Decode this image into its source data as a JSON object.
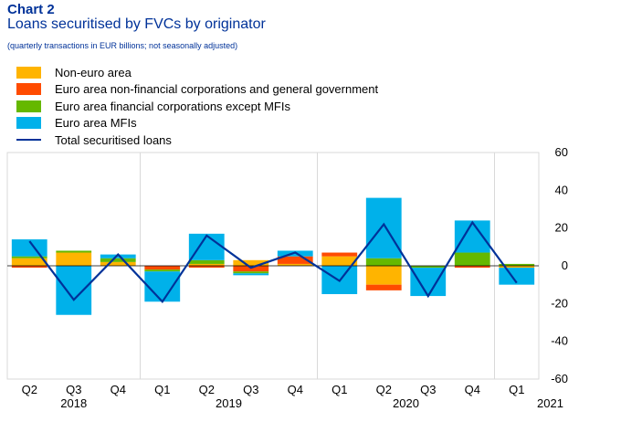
{
  "header": {
    "chart_number": "Chart 2",
    "title": "Loans securitised by FVCs by originator",
    "subtitle": "(quarterly transactions in EUR billions; not seasonally adjusted)"
  },
  "colors": {
    "non_euro": "#FFB400",
    "nfc_gg": "#FF4B00",
    "fc_ex_mfi": "#65B800",
    "mfi": "#00B1EA",
    "total": "#003299",
    "grid": "#d9d9d9"
  },
  "chart_data": {
    "type": "bar",
    "stacked": true,
    "categories": [
      "Q2",
      "Q3",
      "Q4",
      "Q1",
      "Q2",
      "Q3",
      "Q4",
      "Q1",
      "Q2",
      "Q3",
      "Q4",
      "Q1"
    ],
    "years": [
      {
        "label": "2018",
        "first_index": 0,
        "last_index": 2
      },
      {
        "label": "2019",
        "first_index": 3,
        "last_index": 6
      },
      {
        "label": "2020",
        "first_index": 7,
        "last_index": 10
      },
      {
        "label": "2021",
        "first_index": 11,
        "last_index": 11
      }
    ],
    "series": [
      {
        "name": "Non-euro area",
        "color_key": "non_euro",
        "values": [
          4,
          7,
          2,
          0,
          1,
          3,
          1,
          5,
          -10,
          0,
          0,
          -1
        ]
      },
      {
        "name": "Euro area non-financial corporations and general government",
        "color_key": "nfc_gg",
        "values": [
          -1,
          0,
          0,
          -2,
          -1,
          -3,
          4,
          2,
          -3,
          0,
          -1,
          0
        ]
      },
      {
        "name": "Euro area financial corporations except MFIs",
        "color_key": "fc_ex_mfi",
        "values": [
          1,
          1,
          2,
          -1,
          2,
          -1,
          0,
          0,
          4,
          -1,
          7,
          1
        ]
      },
      {
        "name": "Euro area MFIs",
        "color_key": "mfi",
        "values": [
          9,
          -26,
          2,
          -16,
          14,
          -1,
          3,
          -15,
          32,
          -15,
          17,
          -9
        ]
      }
    ],
    "line": {
      "name": "Total securitised loans",
      "color_key": "total",
      "values": [
        13,
        -18,
        6,
        -19,
        16,
        -1,
        7,
        -8,
        22,
        -16,
        23,
        -9
      ]
    },
    "ylim": [
      -60,
      60
    ],
    "yticks": [
      -60,
      -40,
      -20,
      0,
      20,
      40,
      60
    ],
    "y_axis_side": "right",
    "legend_position": "top-left",
    "grid": "vertical"
  }
}
